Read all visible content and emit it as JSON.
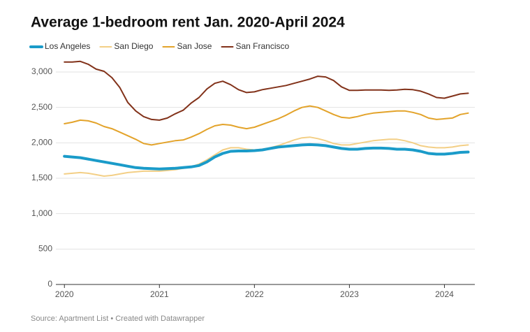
{
  "chart_data": {
    "type": "line",
    "title": "Average 1-bedroom rent Jan. 2020-April 2024",
    "source": "Source: Apartment List • Created with Datawrapper",
    "x": [
      2020,
      2020.083,
      2020.167,
      2020.25,
      2020.333,
      2020.417,
      2020.5,
      2020.583,
      2020.667,
      2020.75,
      2020.833,
      2020.917,
      2021,
      2021.083,
      2021.167,
      2021.25,
      2021.333,
      2021.417,
      2021.5,
      2021.583,
      2021.667,
      2021.75,
      2021.833,
      2021.917,
      2022,
      2022.083,
      2022.167,
      2022.25,
      2022.333,
      2022.417,
      2022.5,
      2022.583,
      2022.667,
      2022.75,
      2022.833,
      2022.917,
      2023,
      2023.083,
      2023.167,
      2023.25,
      2023.333,
      2023.417,
      2023.5,
      2023.583,
      2023.667,
      2023.75,
      2023.833,
      2023.917,
      2024,
      2024.083,
      2024.167,
      2024.25
    ],
    "series": [
      {
        "name": "Los Angeles",
        "color": "#1a9bc9",
        "width": 4,
        "values": [
          1810,
          1800,
          1790,
          1770,
          1750,
          1730,
          1710,
          1690,
          1670,
          1650,
          1640,
          1635,
          1630,
          1635,
          1640,
          1650,
          1660,
          1680,
          1730,
          1800,
          1850,
          1880,
          1885,
          1885,
          1890,
          1900,
          1920,
          1940,
          1950,
          1960,
          1970,
          1975,
          1970,
          1960,
          1940,
          1920,
          1910,
          1910,
          1920,
          1925,
          1925,
          1920,
          1910,
          1910,
          1900,
          1880,
          1850,
          1840,
          1840,
          1850,
          1865,
          1870
        ]
      },
      {
        "name": "San Diego",
        "color": "#f3cf86",
        "width": 2,
        "values": [
          1560,
          1570,
          1580,
          1570,
          1550,
          1530,
          1540,
          1560,
          1580,
          1590,
          1600,
          1600,
          1600,
          1610,
          1620,
          1640,
          1660,
          1700,
          1760,
          1830,
          1900,
          1930,
          1930,
          1910,
          1900,
          1910,
          1930,
          1960,
          2000,
          2040,
          2070,
          2080,
          2060,
          2030,
          1990,
          1970,
          1970,
          1990,
          2010,
          2030,
          2040,
          2050,
          2050,
          2030,
          2000,
          1960,
          1940,
          1930,
          1930,
          1940,
          1960,
          1970
        ]
      },
      {
        "name": "San Jose",
        "color": "#e3a32a",
        "width": 2,
        "values": [
          2270,
          2290,
          2320,
          2310,
          2280,
          2230,
          2200,
          2150,
          2100,
          2050,
          1990,
          1970,
          1990,
          2010,
          2030,
          2040,
          2080,
          2130,
          2190,
          2240,
          2260,
          2250,
          2220,
          2200,
          2220,
          2260,
          2300,
          2340,
          2390,
          2450,
          2500,
          2520,
          2500,
          2450,
          2400,
          2360,
          2350,
          2370,
          2400,
          2420,
          2430,
          2440,
          2450,
          2450,
          2430,
          2400,
          2350,
          2330,
          2340,
          2350,
          2400,
          2420
        ]
      },
      {
        "name": "San Francisco",
        "color": "#82321a",
        "width": 2,
        "values": [
          3140,
          3140,
          3150,
          3110,
          3040,
          3010,
          2920,
          2780,
          2570,
          2450,
          2370,
          2330,
          2320,
          2350,
          2410,
          2460,
          2560,
          2640,
          2760,
          2840,
          2870,
          2820,
          2750,
          2710,
          2720,
          2750,
          2770,
          2790,
          2810,
          2840,
          2870,
          2900,
          2940,
          2930,
          2880,
          2790,
          2740,
          2740,
          2745,
          2745,
          2745,
          2740,
          2745,
          2755,
          2750,
          2730,
          2690,
          2640,
          2630,
          2660,
          2690,
          2700
        ]
      }
    ],
    "xlim": [
      2019.91,
      2024.32
    ],
    "xticks": [
      2020,
      2021,
      2022,
      2023,
      2024
    ],
    "ylim": [
      0,
      3000
    ],
    "yticks": [
      0,
      500,
      {
        "value": 1000,
        "label": "1,000"
      },
      {
        "value": 1500,
        "label": "1,500"
      },
      {
        "value": 2000,
        "label": "2,000"
      },
      {
        "value": 2500,
        "label": "2,500"
      },
      {
        "value": 3000,
        "label": "3,000"
      }
    ],
    "grid": true
  }
}
